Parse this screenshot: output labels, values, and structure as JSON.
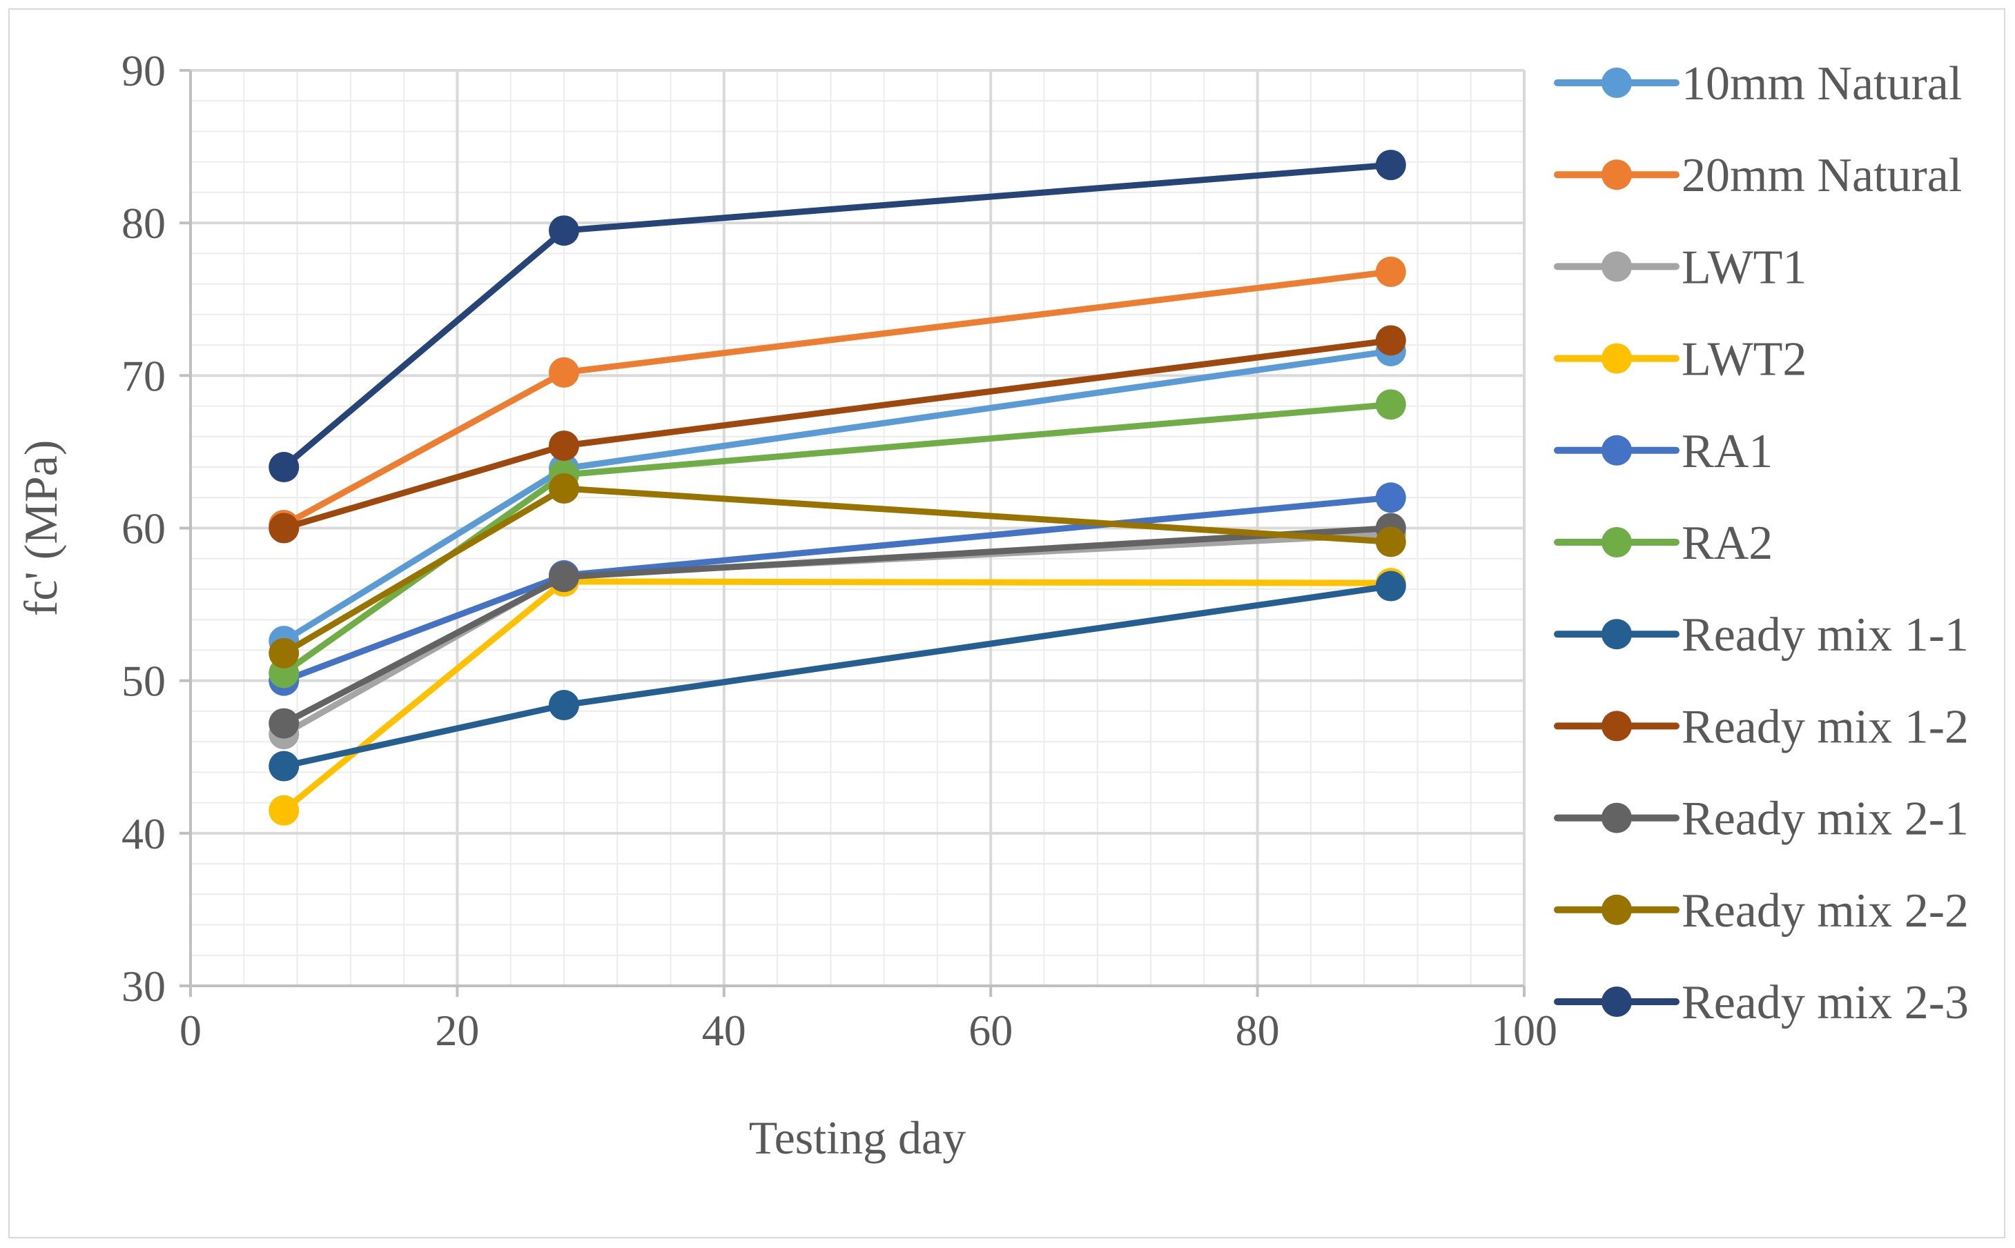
{
  "chart_data": {
    "type": "line",
    "title": "",
    "xlabel": "Testing day",
    "ylabel": "fc' (MPa)",
    "xlim": [
      0,
      100
    ],
    "ylim": [
      30,
      90
    ],
    "x_ticks": [
      0,
      20,
      40,
      60,
      80,
      100
    ],
    "y_ticks": [
      30,
      40,
      50,
      60,
      70,
      80,
      90
    ],
    "grid": true,
    "legend_position": "right",
    "x": [
      7,
      28,
      90
    ],
    "series": [
      {
        "name": "10mm Natural",
        "color": "#5B9BD5",
        "values": [
          52.6,
          63.9,
          71.6
        ]
      },
      {
        "name": "20mm Natural",
        "color": "#ED7D31",
        "values": [
          60.2,
          70.2,
          76.8
        ]
      },
      {
        "name": "LWT1",
        "color": "#A5A5A5",
        "values": [
          46.5,
          56.9,
          59.6
        ]
      },
      {
        "name": "LWT2",
        "color": "#FFC000",
        "values": [
          41.5,
          56.5,
          56.4
        ]
      },
      {
        "name": "RA1",
        "color": "#4472C4",
        "values": [
          50.0,
          56.9,
          62.0
        ]
      },
      {
        "name": "RA2",
        "color": "#70AD47",
        "values": [
          50.5,
          63.5,
          68.1
        ]
      },
      {
        "name": "Ready mix 1-1",
        "color": "#255E91",
        "values": [
          44.4,
          48.4,
          56.2
        ]
      },
      {
        "name": "Ready mix 1-2",
        "color": "#9E480E",
        "values": [
          60.0,
          65.4,
          72.3
        ]
      },
      {
        "name": "Ready mix 2-1",
        "color": "#636363",
        "values": [
          47.2,
          56.8,
          60.0
        ]
      },
      {
        "name": "Ready mix 2-2",
        "color": "#997300",
        "values": [
          51.8,
          62.6,
          59.1
        ]
      },
      {
        "name": "Ready mix 2-3",
        "color": "#264478",
        "values": [
          64.0,
          79.5,
          83.8
        ]
      }
    ]
  }
}
